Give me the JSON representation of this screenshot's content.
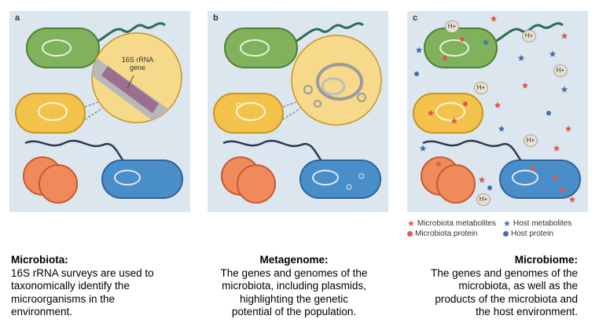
{
  "panels": [
    {
      "letter": "a",
      "callout": "16S rRNA\ngene"
    },
    {
      "letter": "b"
    },
    {
      "letter": "c",
      "ion": "H+"
    }
  ],
  "legend": {
    "microbiota_metabolites": "Microbiota metabolites",
    "host_metabolites": "Host metabolites",
    "microbiota_protein": "Microbiota protein",
    "host_protein": "Host protein"
  },
  "captions": {
    "a": {
      "title": "Microbiota:",
      "desc": "16S rRNA surveys are used to\ntaxonomically identify the\nmicroorganisms in the\nenvironment."
    },
    "b": {
      "title": "Metagenome:",
      "desc": "The genes and genomes of the\nmicrobiota, including plasmids,\nhighlighting the genetic\npotential of the population."
    },
    "c": {
      "title": "Microbiome:",
      "desc": "The genes and genomes of the\nmicrobiota, as well as the\nproducts of the microbiota and\nthe host environment."
    }
  },
  "colors": {
    "panel_bg": "#dce6ef",
    "green_cell": "#7fb25a",
    "yellow_cell": "#f3c24a",
    "orange_cell": "#f08a5b",
    "blue_cell": "#4a8ec9",
    "microbiota_red": "#e2574c",
    "host_blue": "#3d6fb6"
  },
  "icons": {
    "star": "star-icon",
    "dot": "dot-icon"
  }
}
